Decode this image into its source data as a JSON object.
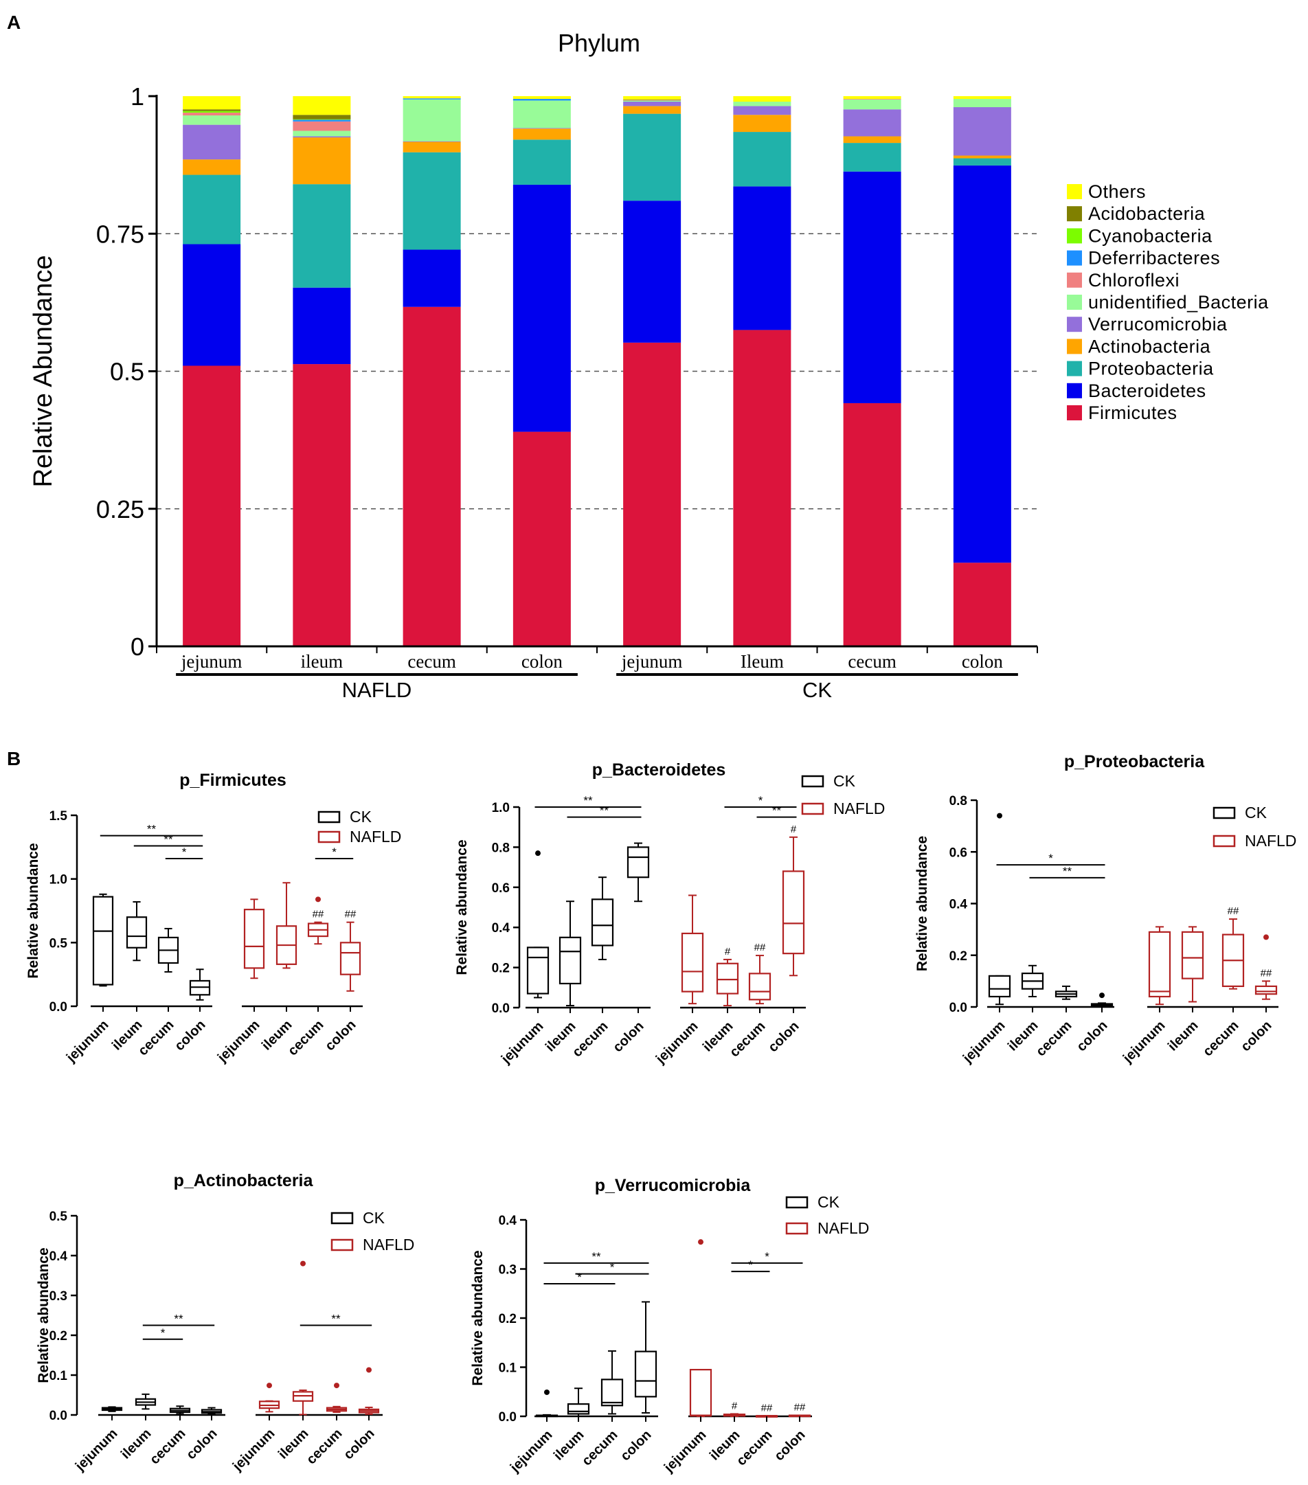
{
  "panel_labels": {
    "a": "A",
    "b": "B"
  },
  "legend_ck": "CK",
  "legend_nafld": "NAFLD",
  "colors": {
    "ck": "#000000",
    "nafld": "#b22222",
    "grid": "#555555"
  },
  "chart_data": [
    {
      "id": "phylum",
      "type": "bar",
      "stacked": true,
      "title": "Phylum",
      "ylabel": "Relative Abundance",
      "ylim": [
        0,
        1
      ],
      "yticks": [
        {
          "v": 0,
          "label": "0"
        },
        {
          "v": 0.25,
          "label": "0.25"
        },
        {
          "v": 0.5,
          "label": "0.5"
        },
        {
          "v": 0.75,
          "label": "0.75"
        },
        {
          "v": 1,
          "label": "1"
        }
      ],
      "gridlines": [
        0.25,
        0.5,
        0.75
      ],
      "categories": [
        "jejunum",
        "ileum",
        "cecum",
        "colon",
        "jejunum",
        "Ileum",
        "cecum",
        "colon"
      ],
      "groups": [
        {
          "label": "NAFLD",
          "first": 0,
          "last": 3
        },
        {
          "label": "CK",
          "first": 4,
          "last": 7
        }
      ],
      "legend_position": "right",
      "series": [
        {
          "name": "Firmicutes",
          "color": "#dc143c",
          "values": [
            0.51,
            0.513,
            0.617,
            0.39,
            0.552,
            0.575,
            0.442,
            0.152
          ]
        },
        {
          "name": "Bacteroidetes",
          "color": "#0000ee",
          "values": [
            0.221,
            0.139,
            0.104,
            0.449,
            0.258,
            0.261,
            0.421,
            0.722
          ]
        },
        {
          "name": "Proteobacteria",
          "color": "#20b2aa",
          "values": [
            0.126,
            0.188,
            0.177,
            0.082,
            0.158,
            0.099,
            0.052,
            0.013
          ]
        },
        {
          "name": "Actinobacteria",
          "color": "#ffa500",
          "values": [
            0.028,
            0.085,
            0.019,
            0.02,
            0.014,
            0.031,
            0.012,
            0.005
          ]
        },
        {
          "name": "Verrucomicrobia",
          "color": "#9370db",
          "values": [
            0.063,
            0.002,
            0.001,
            0.001,
            0.008,
            0.016,
            0.049,
            0.088
          ]
        },
        {
          "name": "unidentified_Bacteria",
          "color": "#98fb98",
          "values": [
            0.017,
            0.01,
            0.076,
            0.05,
            0.002,
            0.008,
            0.018,
            0.015
          ]
        },
        {
          "name": "Chloroflexi",
          "color": "#f08080",
          "values": [
            0.005,
            0.017,
            0,
            0,
            0.001,
            0,
            0.001,
            0
          ]
        },
        {
          "name": "Deferribacteres",
          "color": "#1e90ff",
          "values": [
            0,
            0.003,
            0.002,
            0.003,
            0,
            0,
            0,
            0
          ]
        },
        {
          "name": "Cyanobacteria",
          "color": "#7cfc00",
          "values": [
            0.003,
            0.001,
            0,
            0,
            0,
            0,
            0,
            0
          ]
        },
        {
          "name": "Acidobacteria",
          "color": "#808000",
          "values": [
            0.003,
            0.008,
            0,
            0,
            0.001,
            0,
            0,
            0
          ]
        },
        {
          "name": "Others",
          "color": "#ffff00",
          "values": [
            0.024,
            0.034,
            0.004,
            0.005,
            0.006,
            0.01,
            0.005,
            0.005
          ]
        }
      ],
      "legend_order": [
        "Others",
        "Acidobacteria",
        "Cyanobacteria",
        "Deferribacteres",
        "Chloroflexi",
        "unidentified_Bacteria",
        "Verrucomicrobia",
        "Actinobacteria",
        "Proteobacteria",
        "Bacteroidetes",
        "Firmicutes"
      ]
    },
    {
      "id": "firmicutes",
      "type": "box",
      "title": "p_Firmicutes",
      "ylabel": "Relative abundance",
      "ylim": [
        0,
        1.5
      ],
      "yticks": [
        {
          "v": 0,
          "label": "0.0"
        },
        {
          "v": 0.5,
          "label": "0.5"
        },
        {
          "v": 1,
          "label": "1.0"
        },
        {
          "v": 1.5,
          "label": "1.5"
        }
      ],
      "categories": [
        "jejunum",
        "ileum",
        "cecum",
        "colon",
        "jejunum",
        "ileum",
        "cecum",
        "colon"
      ],
      "boxes": [
        {
          "group": "CK",
          "min": 0.16,
          "q1": 0.17,
          "median": 0.59,
          "q3": 0.86,
          "max": 0.88,
          "outliers": [],
          "mark": ""
        },
        {
          "group": "CK",
          "min": 0.36,
          "q1": 0.46,
          "median": 0.55,
          "q3": 0.7,
          "max": 0.82,
          "outliers": [],
          "mark": ""
        },
        {
          "group": "CK",
          "min": 0.27,
          "q1": 0.34,
          "median": 0.44,
          "q3": 0.54,
          "max": 0.61,
          "outliers": [],
          "mark": ""
        },
        {
          "group": "CK",
          "min": 0.05,
          "q1": 0.09,
          "median": 0.15,
          "q3": 0.2,
          "max": 0.29,
          "outliers": [],
          "mark": ""
        },
        {
          "group": "NAFLD",
          "min": 0.22,
          "q1": 0.3,
          "median": 0.47,
          "q3": 0.76,
          "max": 0.84,
          "outliers": [],
          "mark": ""
        },
        {
          "group": "NAFLD",
          "min": 0.3,
          "q1": 0.33,
          "median": 0.48,
          "q3": 0.63,
          "max": 0.97,
          "outliers": [],
          "mark": ""
        },
        {
          "group": "NAFLD",
          "min": 0.49,
          "q1": 0.55,
          "median": 0.6,
          "q3": 0.65,
          "max": 0.66,
          "outliers": [
            0.84
          ],
          "mark": "##"
        },
        {
          "group": "NAFLD",
          "min": 0.12,
          "q1": 0.25,
          "median": 0.42,
          "q3": 0.5,
          "max": 0.66,
          "outliers": [],
          "mark": "##"
        }
      ],
      "brackets": [
        {
          "from": 0,
          "to": 3,
          "y": 1.34,
          "label": "**"
        },
        {
          "from": 1,
          "to": 3,
          "y": 1.26,
          "label": "**"
        },
        {
          "from": 2,
          "to": 3,
          "y": 1.16,
          "label": "*"
        },
        {
          "from": 6,
          "to": 7,
          "y": 1.16,
          "label": "*"
        }
      ]
    },
    {
      "id": "bacteroidetes",
      "type": "box",
      "title": "p_Bacteroidetes",
      "ylabel": "Relative abundance",
      "ylim": [
        0,
        1
      ],
      "yticks": [
        {
          "v": 0,
          "label": "0.0"
        },
        {
          "v": 0.2,
          "label": "0.2"
        },
        {
          "v": 0.4,
          "label": "0.4"
        },
        {
          "v": 0.6,
          "label": "0.6"
        },
        {
          "v": 0.8,
          "label": "0.8"
        },
        {
          "v": 1,
          "label": "1.0"
        }
      ],
      "categories": [
        "jejunum",
        "ileum",
        "cecum",
        "colon",
        "jejunum",
        "ileum",
        "cecum",
        "colon"
      ],
      "boxes": [
        {
          "group": "CK",
          "min": 0.05,
          "q1": 0.07,
          "median": 0.25,
          "q3": 0.3,
          "max": 0.3,
          "outliers": [
            0.77
          ],
          "mark": ""
        },
        {
          "group": "CK",
          "min": 0.01,
          "q1": 0.12,
          "median": 0.28,
          "q3": 0.35,
          "max": 0.53,
          "outliers": [],
          "mark": ""
        },
        {
          "group": "CK",
          "min": 0.24,
          "q1": 0.31,
          "median": 0.41,
          "q3": 0.54,
          "max": 0.65,
          "outliers": [],
          "mark": ""
        },
        {
          "group": "CK",
          "min": 0.53,
          "q1": 0.65,
          "median": 0.75,
          "q3": 0.8,
          "max": 0.82,
          "outliers": [],
          "mark": ""
        },
        {
          "group": "NAFLD",
          "min": 0.02,
          "q1": 0.08,
          "median": 0.18,
          "q3": 0.37,
          "max": 0.56,
          "outliers": [],
          "mark": ""
        },
        {
          "group": "NAFLD",
          "min": 0.01,
          "q1": 0.07,
          "median": 0.14,
          "q3": 0.22,
          "max": 0.24,
          "outliers": [],
          "mark": "#"
        },
        {
          "group": "NAFLD",
          "min": 0.02,
          "q1": 0.04,
          "median": 0.08,
          "q3": 0.17,
          "max": 0.26,
          "outliers": [],
          "mark": "##"
        },
        {
          "group": "NAFLD",
          "min": 0.16,
          "q1": 0.27,
          "median": 0.42,
          "q3": 0.68,
          "max": 0.85,
          "outliers": [],
          "mark": "#"
        }
      ],
      "brackets": [
        {
          "from": 0,
          "to": 3,
          "y": 1.0,
          "label": "**"
        },
        {
          "from": 1,
          "to": 3,
          "y": 0.95,
          "label": "**"
        },
        {
          "from": 5,
          "to": 7,
          "y": 1.0,
          "label": "*"
        },
        {
          "from": 6,
          "to": 7,
          "y": 0.95,
          "label": "**"
        }
      ]
    },
    {
      "id": "proteobacteria",
      "type": "box",
      "title": "p_Proteobacteria",
      "ylabel": "Relative abundance",
      "ylim": [
        0,
        0.8
      ],
      "yticks": [
        {
          "v": 0,
          "label": "0.0"
        },
        {
          "v": 0.2,
          "label": "0.2"
        },
        {
          "v": 0.4,
          "label": "0.4"
        },
        {
          "v": 0.6,
          "label": "0.6"
        },
        {
          "v": 0.8,
          "label": "0.8"
        }
      ],
      "categories": [
        "jejunum",
        "ileum",
        "cecum",
        "colon",
        "jejunum",
        "ileum",
        "cecum",
        "colon"
      ],
      "boxes": [
        {
          "group": "CK",
          "min": 0.01,
          "q1": 0.04,
          "median": 0.07,
          "q3": 0.12,
          "max": 0.12,
          "outliers": [
            0.74
          ],
          "mark": ""
        },
        {
          "group": "CK",
          "min": 0.04,
          "q1": 0.07,
          "median": 0.1,
          "q3": 0.13,
          "max": 0.16,
          "outliers": [],
          "mark": ""
        },
        {
          "group": "CK",
          "min": 0.03,
          "q1": 0.04,
          "median": 0.05,
          "q3": 0.06,
          "max": 0.08,
          "outliers": [],
          "mark": ""
        },
        {
          "group": "CK",
          "min": 0.002,
          "q1": 0.005,
          "median": 0.008,
          "q3": 0.012,
          "max": 0.015,
          "outliers": [
            0.045
          ],
          "mark": ""
        },
        {
          "group": "NAFLD",
          "min": 0.01,
          "q1": 0.04,
          "median": 0.06,
          "q3": 0.29,
          "max": 0.31,
          "outliers": [],
          "mark": ""
        },
        {
          "group": "NAFLD",
          "min": 0.02,
          "q1": 0.11,
          "median": 0.19,
          "q3": 0.29,
          "max": 0.31,
          "outliers": [],
          "mark": ""
        },
        {
          "group": "NAFLD",
          "min": 0.07,
          "q1": 0.08,
          "median": 0.18,
          "q3": 0.28,
          "max": 0.34,
          "outliers": [],
          "mark": "##"
        },
        {
          "group": "NAFLD",
          "min": 0.03,
          "q1": 0.05,
          "median": 0.06,
          "q3": 0.08,
          "max": 0.1,
          "outliers": [
            0.27
          ],
          "mark": "##"
        }
      ],
      "brackets": [
        {
          "from": 0,
          "to": 3,
          "y": 0.55,
          "label": "*"
        },
        {
          "from": 1,
          "to": 3,
          "y": 0.5,
          "label": "**"
        }
      ]
    },
    {
      "id": "actinobacteria",
      "type": "box",
      "title": "p_Actinobacteria",
      "ylabel": "Relative abundance",
      "ylim": [
        0,
        0.5
      ],
      "yticks": [
        {
          "v": 0,
          "label": "0.0"
        },
        {
          "v": 0.1,
          "label": "0.1"
        },
        {
          "v": 0.2,
          "label": "0.2"
        },
        {
          "v": 0.3,
          "label": "0.3"
        },
        {
          "v": 0.4,
          "label": "0.4"
        },
        {
          "v": 0.5,
          "label": "0.5"
        }
      ],
      "categories": [
        "jejunum",
        "ileum",
        "cecum",
        "colon",
        "jejunum",
        "ileum",
        "cecum",
        "colon"
      ],
      "boxes": [
        {
          "group": "CK",
          "min": 0.009,
          "q1": 0.012,
          "median": 0.015,
          "q3": 0.018,
          "max": 0.02,
          "outliers": [],
          "mark": ""
        },
        {
          "group": "CK",
          "min": 0.015,
          "q1": 0.025,
          "median": 0.032,
          "q3": 0.04,
          "max": 0.052,
          "outliers": [],
          "mark": ""
        },
        {
          "group": "CK",
          "min": 0.003,
          "q1": 0.007,
          "median": 0.011,
          "q3": 0.016,
          "max": 0.022,
          "outliers": [],
          "mark": ""
        },
        {
          "group": "CK",
          "min": 0.002,
          "q1": 0.005,
          "median": 0.008,
          "q3": 0.013,
          "max": 0.018,
          "outliers": [],
          "mark": ""
        },
        {
          "group": "NAFLD",
          "min": 0.008,
          "q1": 0.017,
          "median": 0.024,
          "q3": 0.034,
          "max": 0.035,
          "outliers": [
            0.074
          ],
          "mark": ""
        },
        {
          "group": "NAFLD",
          "min": 0.001,
          "q1": 0.035,
          "median": 0.048,
          "q3": 0.058,
          "max": 0.062,
          "outliers": [
            0.38
          ],
          "mark": ""
        },
        {
          "group": "NAFLD",
          "min": 0.007,
          "q1": 0.01,
          "median": 0.014,
          "q3": 0.018,
          "max": 0.021,
          "outliers": [
            0.074
          ],
          "mark": ""
        },
        {
          "group": "NAFLD",
          "min": 0.002,
          "q1": 0.006,
          "median": 0.01,
          "q3": 0.014,
          "max": 0.019,
          "outliers": [
            0.113
          ],
          "mark": ""
        }
      ],
      "brackets": [
        {
          "from": 1,
          "to": 3,
          "y": 0.225,
          "label": "**"
        },
        {
          "from": 1,
          "to": 2,
          "y": 0.19,
          "label": "*"
        },
        {
          "from": 5,
          "to": 7,
          "y": 0.225,
          "label": "**"
        }
      ]
    },
    {
      "id": "verrucomicrobia",
      "type": "box",
      "title": "p_Verrucomicrobia",
      "ylabel": "Relative abundance",
      "ylim": [
        0,
        0.4
      ],
      "yticks": [
        {
          "v": 0,
          "label": "0.0"
        },
        {
          "v": 0.1,
          "label": "0.1"
        },
        {
          "v": 0.2,
          "label": "0.2"
        },
        {
          "v": 0.3,
          "label": "0.3"
        },
        {
          "v": 0.4,
          "label": "0.4"
        }
      ],
      "categories": [
        "jejunum",
        "ileum",
        "cecum",
        "colon",
        "jejunum",
        "ileum",
        "cecum",
        "colon"
      ],
      "boxes": [
        {
          "group": "CK",
          "min": 0,
          "q1": 0.001,
          "median": 0.001,
          "q3": 0.002,
          "max": 0.003,
          "outliers": [
            0.049
          ],
          "mark": ""
        },
        {
          "group": "CK",
          "min": 0,
          "q1": 0.005,
          "median": 0.01,
          "q3": 0.025,
          "max": 0.057,
          "outliers": [],
          "mark": ""
        },
        {
          "group": "CK",
          "min": 0.005,
          "q1": 0.022,
          "median": 0.028,
          "q3": 0.075,
          "max": 0.133,
          "outliers": [],
          "mark": ""
        },
        {
          "group": "CK",
          "min": 0.007,
          "q1": 0.04,
          "median": 0.072,
          "q3": 0.132,
          "max": 0.233,
          "outliers": [],
          "mark": ""
        },
        {
          "group": "NAFLD",
          "min": 0,
          "q1": 0.001,
          "median": 0.002,
          "q3": 0.095,
          "max": 0.095,
          "outliers": [
            0.355
          ],
          "mark": ""
        },
        {
          "group": "NAFLD",
          "min": 0,
          "q1": 0.001,
          "median": 0.002,
          "q3": 0.004,
          "max": 0.005,
          "outliers": [],
          "mark": "#"
        },
        {
          "group": "NAFLD",
          "min": 0,
          "q1": 0.001,
          "median": 0.001,
          "q3": 0.001,
          "max": 0.001,
          "outliers": [],
          "mark": "##"
        },
        {
          "group": "NAFLD",
          "min": 0,
          "q1": 0.001,
          "median": 0.001,
          "q3": 0.002,
          "max": 0.002,
          "outliers": [],
          "mark": "##"
        }
      ],
      "brackets": [
        {
          "from": 0,
          "to": 3,
          "y": 0.312,
          "label": "**"
        },
        {
          "from": 1,
          "to": 3,
          "y": 0.29,
          "label": "*"
        },
        {
          "from": 0,
          "to": 2,
          "y": 0.27,
          "label": "*"
        },
        {
          "from": 5,
          "to": 7,
          "y": 0.312,
          "label": "*"
        },
        {
          "from": 5,
          "to": 6,
          "y": 0.295,
          "label": "*"
        }
      ]
    }
  ]
}
